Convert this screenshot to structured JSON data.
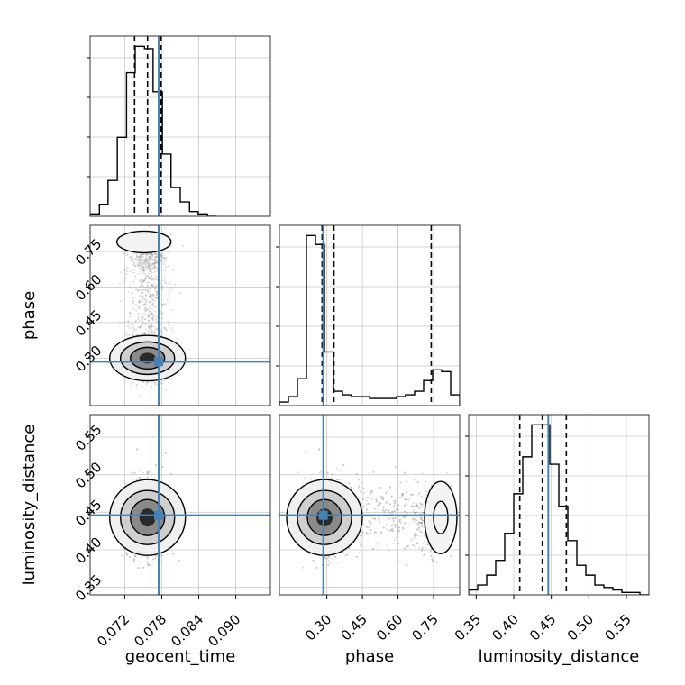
{
  "chart_data": {
    "type": "corner",
    "grid": true,
    "colors": {
      "truth": "#4682b4",
      "hist": "#000000",
      "scatter": "#999999"
    },
    "parameters": [
      {
        "name": "geocent_time",
        "label": "geocent_time",
        "range": [
          0.0664,
          0.0956
        ],
        "ticks": [
          "0.072",
          "0.078",
          "0.084",
          "0.090"
        ],
        "truth": 0.0775,
        "quantiles": [
          0.0736,
          0.0757,
          0.0779
        ]
      },
      {
        "name": "phase",
        "label": "phase",
        "range": [
          0.1,
          0.86
        ],
        "ticks": [
          "0.30",
          "0.45",
          "0.60",
          "0.75"
        ],
        "truth": 0.285,
        "quantiles": [
          0.28,
          0.33,
          0.74
        ]
      },
      {
        "name": "luminosity_distance",
        "label": "luminosity_distance",
        "range": [
          0.34,
          0.58
        ],
        "ticks": [
          "0.35",
          "0.40",
          "0.45",
          "0.50",
          "0.55"
        ],
        "truth": 0.446,
        "quantiles": [
          0.408,
          0.438,
          0.47
        ]
      }
    ],
    "histograms": [
      {
        "param": "geocent_time",
        "bin_edges": [
          0.0664,
          0.0679,
          0.0693,
          0.0708,
          0.0723,
          0.0737,
          0.0752,
          0.0766,
          0.0781,
          0.0795,
          0.081,
          0.0825,
          0.0839,
          0.0854,
          0.0869
        ],
        "counts": [
          1,
          5,
          15,
          33,
          60,
          71,
          70,
          52,
          26,
          12,
          6,
          2,
          1,
          0
        ]
      },
      {
        "param": "phase",
        "bin_edges": [
          0.1,
          0.138,
          0.176,
          0.214,
          0.252,
          0.29,
          0.328,
          0.366,
          0.404,
          0.442,
          0.48,
          0.518,
          0.556,
          0.594,
          0.632,
          0.67,
          0.708,
          0.746,
          0.784,
          0.822,
          0.86
        ],
        "counts": [
          2,
          5,
          15,
          95,
          90,
          30,
          8,
          6,
          5,
          5,
          4,
          4,
          4,
          5,
          6,
          8,
          14,
          20,
          19,
          6
        ]
      },
      {
        "param": "luminosity_distance",
        "bin_edges": [
          0.34,
          0.352,
          0.364,
          0.376,
          0.388,
          0.4,
          0.412,
          0.424,
          0.436,
          0.448,
          0.46,
          0.472,
          0.484,
          0.496,
          0.508,
          0.52,
          0.532,
          0.544,
          0.556,
          0.568,
          0.58
        ],
        "counts": [
          2,
          4,
          8,
          14,
          25,
          41,
          56,
          69,
          69,
          53,
          36,
          22,
          12,
          8,
          4,
          3,
          2,
          1,
          1,
          0
        ]
      }
    ]
  }
}
